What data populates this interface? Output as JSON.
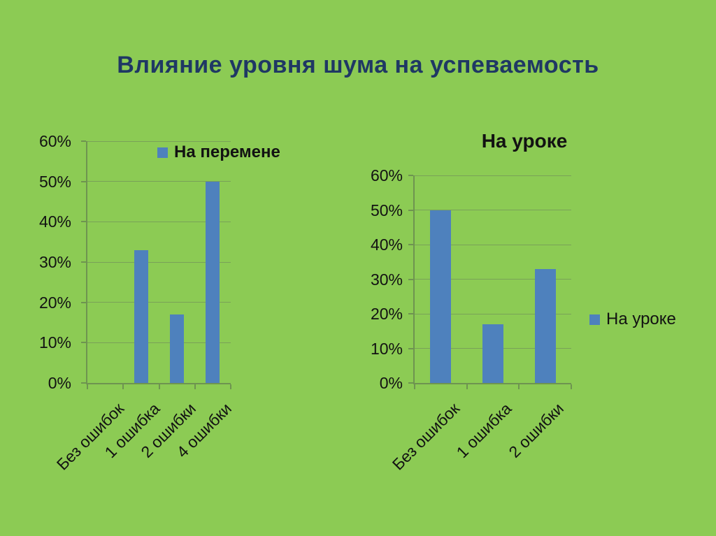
{
  "slide": {
    "title": "Влияние уровня шума на успеваемость",
    "background_color": "#8ccb54",
    "title_color": "#1f3864"
  },
  "colors": {
    "bar": "#4e81bd",
    "gridline": "#79a158",
    "axis": "#6e9450",
    "chart_text": "#121212"
  },
  "chart_data": [
    {
      "type": "bar",
      "title": "",
      "legend": "На перемене",
      "legend_position": "top-inside",
      "categories": [
        "Без ошибок",
        "1 ошибка",
        "2 ошибки",
        "4 ошибки"
      ],
      "values": [
        0,
        33,
        17,
        50
      ],
      "unit": "%",
      "ylim": [
        0,
        60
      ],
      "yticks": [
        "0%",
        "10%",
        "20%",
        "30%",
        "40%",
        "50%",
        "60%"
      ],
      "grid": true
    },
    {
      "type": "bar",
      "title": "На уроке",
      "legend": "На уроке",
      "legend_position": "right",
      "categories": [
        "Без ошибок",
        "1 ошибка",
        "2 ошибки"
      ],
      "values": [
        50,
        17,
        33
      ],
      "unit": "%",
      "ylim": [
        0,
        60
      ],
      "yticks": [
        "0%",
        "10%",
        "20%",
        "30%",
        "40%",
        "50%",
        "60%"
      ],
      "grid": true
    }
  ]
}
